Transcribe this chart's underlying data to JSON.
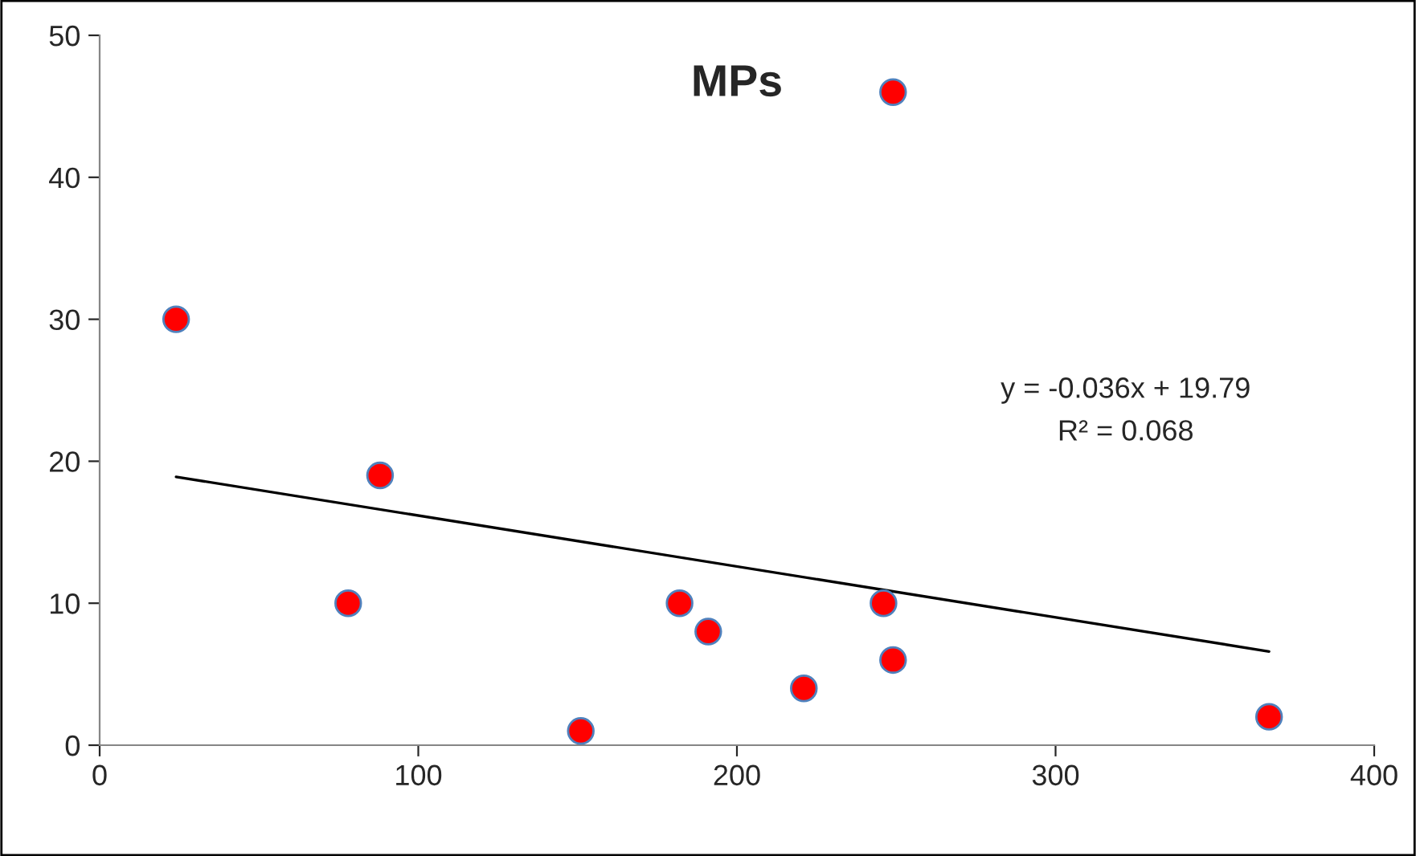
{
  "chart_data": {
    "type": "scatter",
    "title": "MPs",
    "grid": false,
    "legend": false,
    "xlim": [
      0,
      400
    ],
    "xticks": [
      0,
      100,
      200,
      300,
      400
    ],
    "ylim": [
      0,
      50
    ],
    "yticks": [
      0,
      10,
      20,
      30,
      40,
      50
    ],
    "series": [
      {
        "marker": "circle",
        "color": "#ff0000",
        "x": [
          24,
          88,
          78,
          151,
          182,
          191,
          221,
          246,
          249,
          249,
          367
        ],
        "values": [
          30,
          19,
          10,
          1,
          10,
          8,
          4,
          10,
          46,
          6,
          2
        ]
      },
      {
        "type": "line",
        "marker": "none",
        "color": "#000000",
        "x": [
          24,
          367
        ],
        "values": [
          18.9,
          6.6
        ]
      }
    ],
    "annotations": [
      "y = -0.036x + 19.79",
      "R² = 0.068"
    ]
  }
}
